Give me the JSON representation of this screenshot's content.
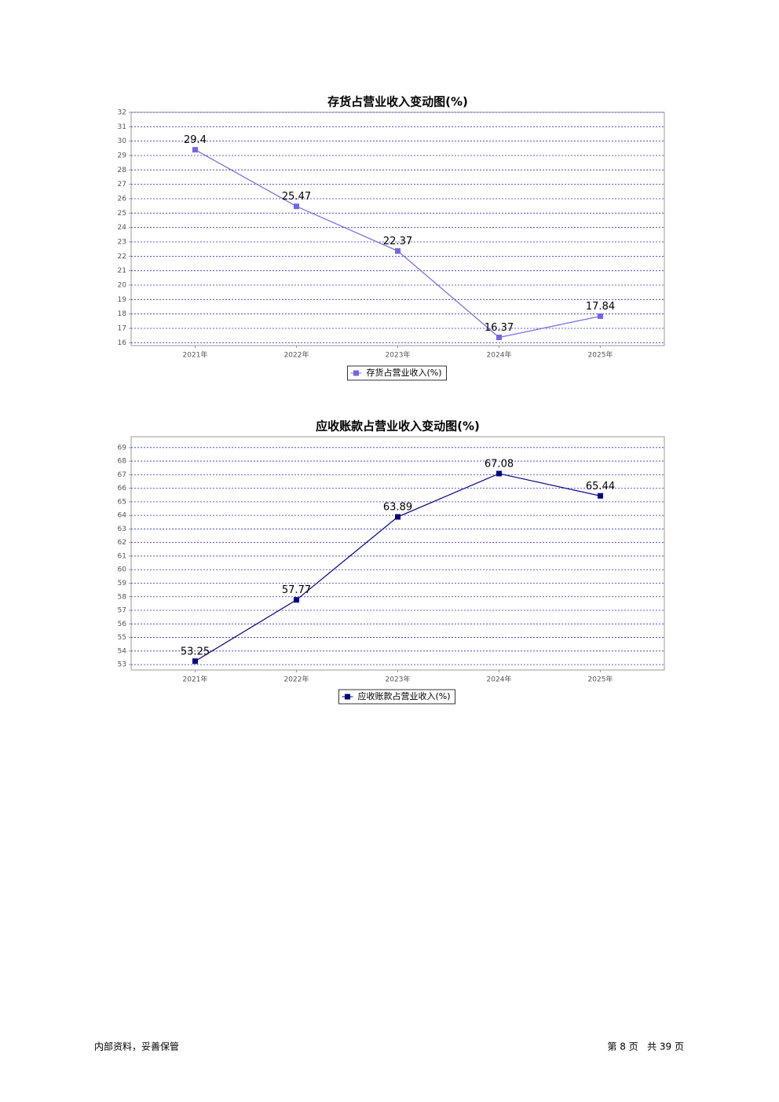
{
  "chart_data": [
    {
      "type": "line",
      "title": "存货占营业收入变动图(%)",
      "categories": [
        "2021年",
        "2022年",
        "2023年",
        "2024年",
        "2025年"
      ],
      "series": [
        {
          "name": "存货占营业收入(%)",
          "color": "#7366e6",
          "values": [
            29.4,
            25.47,
            22.37,
            16.37,
            17.84
          ]
        }
      ],
      "ylim": [
        15.8,
        32
      ],
      "yticks": [
        16,
        17,
        18,
        19,
        20,
        21,
        22,
        23,
        24,
        25,
        26,
        27,
        28,
        29,
        30,
        31,
        32
      ],
      "grid": true
    },
    {
      "type": "line",
      "title": "应收账款占营业收入变动图(%)",
      "categories": [
        "2021年",
        "2022年",
        "2023年",
        "2024年",
        "2025年"
      ],
      "series": [
        {
          "name": "应收账款占营业收入(%)",
          "color": "#000080",
          "values": [
            53.25,
            57.77,
            63.89,
            67.08,
            65.44
          ]
        }
      ],
      "ylim": [
        52.6,
        69.8
      ],
      "yticks": [
        53,
        54,
        55,
        56,
        57,
        58,
        59,
        60,
        61,
        62,
        63,
        64,
        65,
        66,
        67,
        68,
        69
      ],
      "grid": true
    }
  ],
  "footer": {
    "left": "内部资料，妥善保管",
    "right": "第 8 页   共 39 页"
  }
}
